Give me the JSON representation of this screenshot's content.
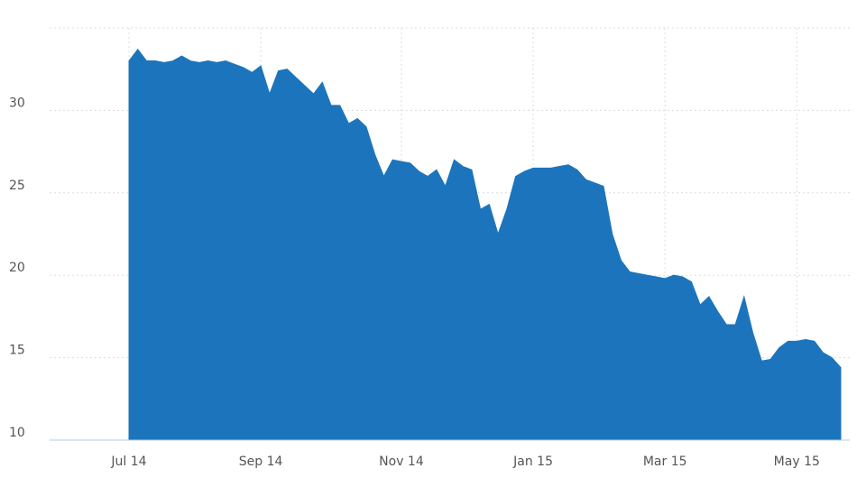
{
  "chart_data": {
    "type": "area",
    "categories": [
      "Jul 14",
      null,
      null,
      null,
      null,
      null,
      null,
      null,
      null,
      null,
      null,
      null,
      null,
      null,
      null,
      "Sep 14",
      null,
      null,
      null,
      null,
      null,
      null,
      null,
      null,
      null,
      null,
      null,
      null,
      null,
      null,
      null,
      "Nov 14",
      null,
      null,
      null,
      null,
      null,
      null,
      null,
      null,
      null,
      null,
      null,
      null,
      null,
      null,
      "Jan 15",
      null,
      null,
      null,
      null,
      null,
      null,
      null,
      null,
      null,
      null,
      null,
      null,
      null,
      null,
      "Mar 15",
      null,
      null,
      null,
      null,
      null,
      null,
      null,
      null,
      null,
      null,
      null,
      null,
      null,
      null,
      "May 15",
      null,
      null,
      null,
      null,
      null
    ],
    "values": [
      33.0,
      33.7,
      33.0,
      33.0,
      32.9,
      33.0,
      33.3,
      33.0,
      32.9,
      33.0,
      32.9,
      33.0,
      32.8,
      32.6,
      32.3,
      32.7,
      31.0,
      32.4,
      32.5,
      32.0,
      31.5,
      31.0,
      31.7,
      30.3,
      30.3,
      29.2,
      29.5,
      29.0,
      27.3,
      26.0,
      27.0,
      26.9,
      26.8,
      26.3,
      26.0,
      26.4,
      25.4,
      27.0,
      26.6,
      26.4,
      24.0,
      24.3,
      22.5,
      24.0,
      26.0,
      26.3,
      26.5,
      26.5,
      26.5,
      26.6,
      26.7,
      26.4,
      25.8,
      25.6,
      25.4,
      22.5,
      20.9,
      20.2,
      20.1,
      20.0,
      19.9,
      19.8,
      20.0,
      19.9,
      19.6,
      18.2,
      18.7,
      17.8,
      17.0,
      17.0,
      18.7,
      16.5,
      14.8,
      14.9,
      15.6,
      16.0,
      16.0,
      16.1,
      16.0,
      15.3,
      15.0,
      14.4
    ],
    "color": "#1c75bc",
    "ylim": [
      10,
      35
    ],
    "yticks": [
      10,
      15,
      20,
      25,
      30
    ],
    "grid": true
  }
}
